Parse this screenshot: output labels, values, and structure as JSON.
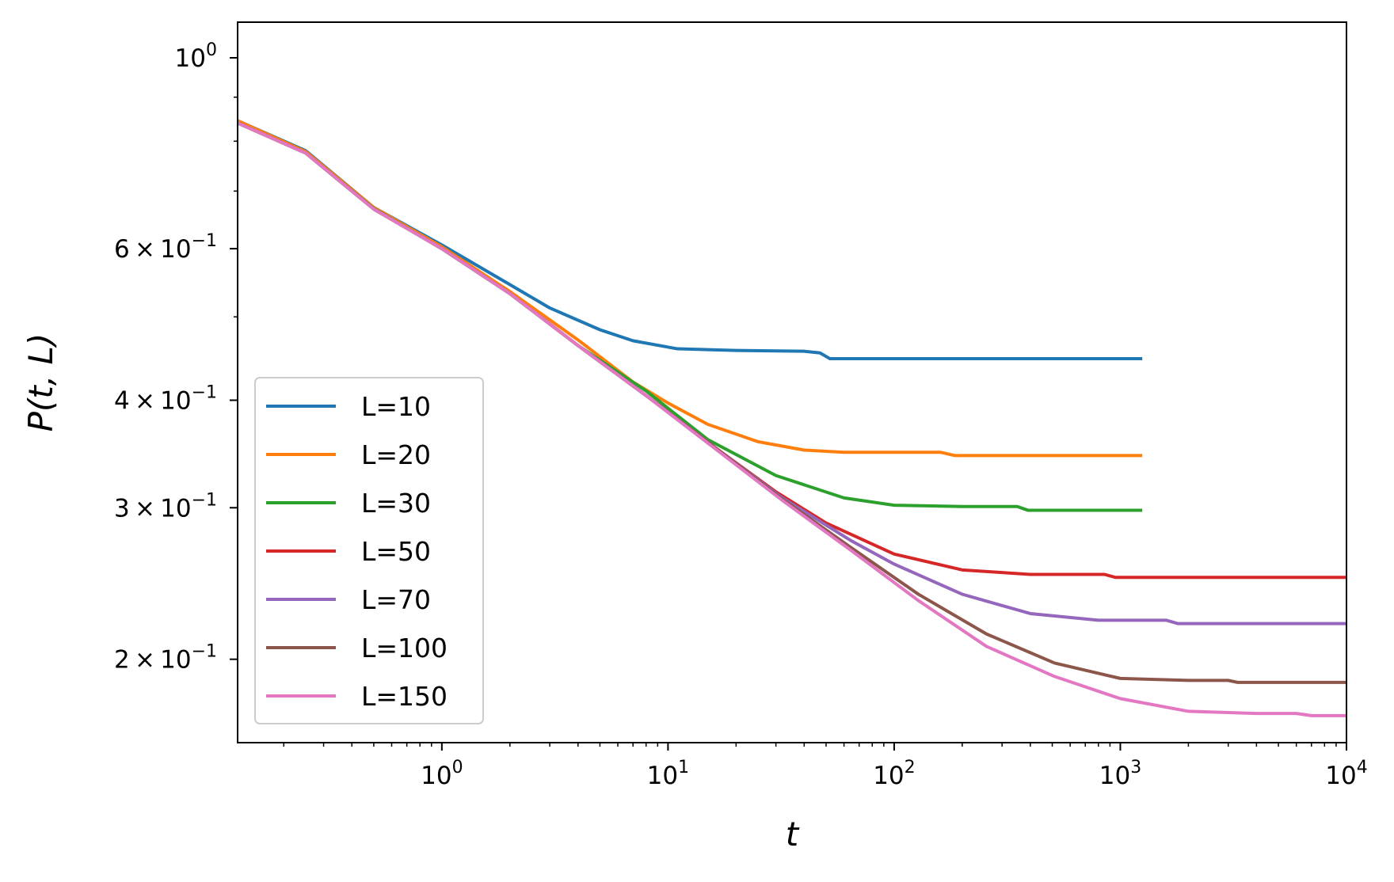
{
  "chart_data": {
    "type": "line",
    "title": "",
    "xlabel": "t",
    "ylabel": "P(t, L)",
    "xscale": "log",
    "yscale": "log",
    "xlim": [
      0.125,
      10000
    ],
    "ylim": [
      0.16,
      1.1
    ],
    "grid": false,
    "legend_position": "lower-left",
    "x_ticks": [
      {
        "value": 1,
        "base": "10",
        "exp": "0"
      },
      {
        "value": 10,
        "base": "10",
        "exp": "1"
      },
      {
        "value": 100,
        "base": "10",
        "exp": "2"
      },
      {
        "value": 1000,
        "base": "10",
        "exp": "3"
      },
      {
        "value": 10000,
        "base": "10",
        "exp": "4"
      }
    ],
    "y_ticks": [
      {
        "value": 1.0,
        "mantissa": "",
        "base": "10",
        "exp": "0"
      },
      {
        "value": 0.6,
        "mantissa": "6",
        "base": "10",
        "exp": "−1"
      },
      {
        "value": 0.4,
        "mantissa": "4",
        "base": "10",
        "exp": "−1"
      },
      {
        "value": 0.3,
        "mantissa": "3",
        "base": "10",
        "exp": "−1"
      },
      {
        "value": 0.2,
        "mantissa": "2",
        "base": "10",
        "exp": "−1"
      }
    ],
    "series": [
      {
        "name": "L=10",
        "color": "#1f77b4",
        "points": [
          [
            0.125,
            0.845
          ],
          [
            0.25,
            0.78
          ],
          [
            0.5,
            0.67
          ],
          [
            1,
            0.606
          ],
          [
            2,
            0.545
          ],
          [
            3,
            0.512
          ],
          [
            5,
            0.483
          ],
          [
            7,
            0.469
          ],
          [
            11,
            0.459
          ],
          [
            20,
            0.457
          ],
          [
            40,
            0.456
          ],
          [
            47,
            0.454
          ],
          [
            52,
            0.447
          ],
          [
            100,
            0.447
          ],
          [
            500,
            0.447
          ],
          [
            1250,
            0.447
          ]
        ]
      },
      {
        "name": "L=20",
        "color": "#ff7f0e",
        "points": [
          [
            0.125,
            0.845
          ],
          [
            0.25,
            0.778
          ],
          [
            0.5,
            0.67
          ],
          [
            1,
            0.603
          ],
          [
            2,
            0.535
          ],
          [
            4,
            0.47
          ],
          [
            7,
            0.42
          ],
          [
            10,
            0.397
          ],
          [
            15,
            0.375
          ],
          [
            25,
            0.358
          ],
          [
            40,
            0.35
          ],
          [
            60,
            0.348
          ],
          [
            100,
            0.348
          ],
          [
            160,
            0.348
          ],
          [
            185,
            0.345
          ],
          [
            500,
            0.345
          ],
          [
            1250,
            0.345
          ]
        ]
      },
      {
        "name": "L=30",
        "color": "#2ca02c",
        "points": [
          [
            0.125,
            0.84
          ],
          [
            0.25,
            0.775
          ],
          [
            0.5,
            0.668
          ],
          [
            1,
            0.6
          ],
          [
            2,
            0.532
          ],
          [
            4,
            0.463
          ],
          [
            8,
            0.41
          ],
          [
            15,
            0.36
          ],
          [
            30,
            0.327
          ],
          [
            60,
            0.308
          ],
          [
            100,
            0.302
          ],
          [
            200,
            0.301
          ],
          [
            350,
            0.301
          ],
          [
            390,
            0.298
          ],
          [
            1250,
            0.298
          ]
        ]
      },
      {
        "name": "L=50",
        "color": "#d62728",
        "points": [
          [
            0.125,
            0.84
          ],
          [
            0.25,
            0.775
          ],
          [
            0.5,
            0.667
          ],
          [
            1,
            0.6
          ],
          [
            2,
            0.532
          ],
          [
            4,
            0.463
          ],
          [
            8,
            0.405
          ],
          [
            16,
            0.353
          ],
          [
            30,
            0.313
          ],
          [
            50,
            0.288
          ],
          [
            100,
            0.265
          ],
          [
            200,
            0.254
          ],
          [
            400,
            0.251
          ],
          [
            850,
            0.251
          ],
          [
            950,
            0.249
          ],
          [
            10000,
            0.249
          ]
        ]
      },
      {
        "name": "L=70",
        "color": "#9467bd",
        "points": [
          [
            0.125,
            0.84
          ],
          [
            0.25,
            0.775
          ],
          [
            0.5,
            0.667
          ],
          [
            1,
            0.6
          ],
          [
            2,
            0.532
          ],
          [
            4,
            0.463
          ],
          [
            8,
            0.405
          ],
          [
            16,
            0.353
          ],
          [
            32,
            0.308
          ],
          [
            64,
            0.275
          ],
          [
            100,
            0.258
          ],
          [
            200,
            0.238
          ],
          [
            400,
            0.226
          ],
          [
            800,
            0.222
          ],
          [
            1600,
            0.222
          ],
          [
            1800,
            0.22
          ],
          [
            10000,
            0.22
          ]
        ]
      },
      {
        "name": "L=100",
        "color": "#8c564b",
        "points": [
          [
            0.125,
            0.84
          ],
          [
            0.25,
            0.775
          ],
          [
            0.5,
            0.667
          ],
          [
            1,
            0.6
          ],
          [
            2,
            0.532
          ],
          [
            4,
            0.463
          ],
          [
            8,
            0.405
          ],
          [
            16,
            0.353
          ],
          [
            32,
            0.307
          ],
          [
            64,
            0.27
          ],
          [
            128,
            0.238
          ],
          [
            256,
            0.214
          ],
          [
            512,
            0.198
          ],
          [
            1000,
            0.19
          ],
          [
            2000,
            0.189
          ],
          [
            3000,
            0.189
          ],
          [
            3300,
            0.188
          ],
          [
            10000,
            0.188
          ]
        ]
      },
      {
        "name": "L=150",
        "color": "#e377c2",
        "points": [
          [
            0.125,
            0.84
          ],
          [
            0.25,
            0.775
          ],
          [
            0.5,
            0.667
          ],
          [
            1,
            0.6
          ],
          [
            2,
            0.532
          ],
          [
            4,
            0.463
          ],
          [
            8,
            0.405
          ],
          [
            16,
            0.352
          ],
          [
            32,
            0.306
          ],
          [
            64,
            0.268
          ],
          [
            128,
            0.234
          ],
          [
            256,
            0.207
          ],
          [
            512,
            0.191
          ],
          [
            1000,
            0.18
          ],
          [
            2000,
            0.174
          ],
          [
            4000,
            0.173
          ],
          [
            6000,
            0.173
          ],
          [
            7000,
            0.172
          ],
          [
            10000,
            0.172
          ]
        ]
      }
    ]
  }
}
